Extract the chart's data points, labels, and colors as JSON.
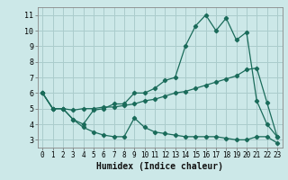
{
  "title": "",
  "xlabel": "Humidex (Indice chaleur)",
  "bg_color": "#cce8e8",
  "grid_color": "#aacccc",
  "line_color": "#1a6b5a",
  "xlim": [
    -0.5,
    23.5
  ],
  "ylim": [
    2.5,
    11.5
  ],
  "xticks": [
    0,
    1,
    2,
    3,
    4,
    5,
    6,
    7,
    8,
    9,
    10,
    11,
    12,
    13,
    14,
    15,
    16,
    17,
    18,
    19,
    20,
    21,
    22,
    23
  ],
  "yticks": [
    3,
    4,
    5,
    6,
    7,
    8,
    9,
    10,
    11
  ],
  "line1_x": [
    0,
    1,
    2,
    3,
    4,
    5,
    6,
    7,
    8,
    9,
    10,
    11,
    12,
    13,
    14,
    15,
    16,
    17,
    18,
    19,
    20,
    21,
    22,
    23
  ],
  "line1_y": [
    6.0,
    5.0,
    5.0,
    4.3,
    4.0,
    4.9,
    5.0,
    5.3,
    5.3,
    6.0,
    6.0,
    6.3,
    6.8,
    7.0,
    9.0,
    10.3,
    11.0,
    10.0,
    10.8,
    9.4,
    9.9,
    5.5,
    4.0,
    3.2
  ],
  "line2_x": [
    0,
    1,
    2,
    3,
    4,
    5,
    6,
    7,
    8,
    9,
    10,
    11,
    12,
    13,
    14,
    15,
    16,
    17,
    18,
    19,
    20,
    21,
    22,
    23
  ],
  "line2_y": [
    6.0,
    5.0,
    5.0,
    4.9,
    5.0,
    5.0,
    5.1,
    5.1,
    5.2,
    5.3,
    5.5,
    5.6,
    5.8,
    6.0,
    6.1,
    6.3,
    6.5,
    6.7,
    6.9,
    7.1,
    7.5,
    7.6,
    5.4,
    3.2
  ],
  "line3_x": [
    0,
    1,
    2,
    3,
    4,
    5,
    6,
    7,
    8,
    9,
    10,
    11,
    12,
    13,
    14,
    15,
    16,
    17,
    18,
    19,
    20,
    21,
    22,
    23
  ],
  "line3_y": [
    6.0,
    5.0,
    5.0,
    4.3,
    3.8,
    3.5,
    3.3,
    3.2,
    3.2,
    4.4,
    3.8,
    3.5,
    3.4,
    3.3,
    3.2,
    3.2,
    3.2,
    3.2,
    3.1,
    3.0,
    3.0,
    3.2,
    3.2,
    2.8
  ],
  "xlabel_fontsize": 7,
  "tick_fontsize": 5.5
}
